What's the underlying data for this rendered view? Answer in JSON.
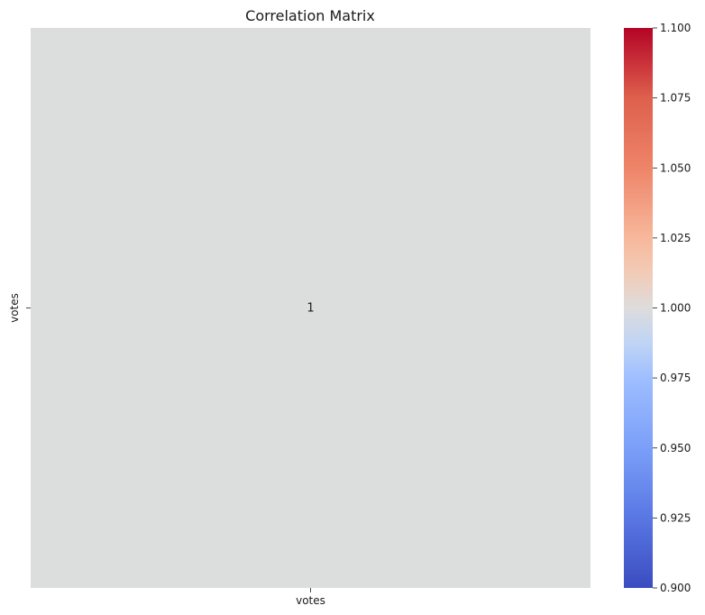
{
  "chart_data": {
    "type": "heatmap",
    "title": "Correlation Matrix",
    "x_categories": [
      "votes"
    ],
    "y_categories": [
      "votes"
    ],
    "values": [
      [
        1
      ]
    ],
    "annotations": [
      [
        "1"
      ]
    ],
    "colormap": "coolwarm",
    "cell_color": "#dcdddd",
    "colorbar": {
      "range": [
        0.9,
        1.1
      ],
      "ticks": [
        0.9,
        0.925,
        0.95,
        0.975,
        1.0,
        1.025,
        1.05,
        1.075,
        1.1
      ],
      "tick_labels": [
        "0.900",
        "0.925",
        "0.950",
        "0.975",
        "1.000",
        "1.025",
        "1.050",
        "1.075",
        "1.100"
      ],
      "gradient_stops": [
        {
          "v": 0.9,
          "color": "#3b4cc0"
        },
        {
          "v": 0.925,
          "color": "#5977e3"
        },
        {
          "v": 0.95,
          "color": "#7b9ff9"
        },
        {
          "v": 0.975,
          "color": "#9ebeff"
        },
        {
          "v": 0.9875,
          "color": "#c0d4f5"
        },
        {
          "v": 1.0,
          "color": "#dddcdc"
        },
        {
          "v": 1.0125,
          "color": "#f2cbb7"
        },
        {
          "v": 1.025,
          "color": "#f7b89c"
        },
        {
          "v": 1.05,
          "color": "#ee8468"
        },
        {
          "v": 1.075,
          "color": "#de604d"
        },
        {
          "v": 1.1,
          "color": "#b40426"
        }
      ]
    },
    "grid": false,
    "legend": "colorbar-right"
  }
}
